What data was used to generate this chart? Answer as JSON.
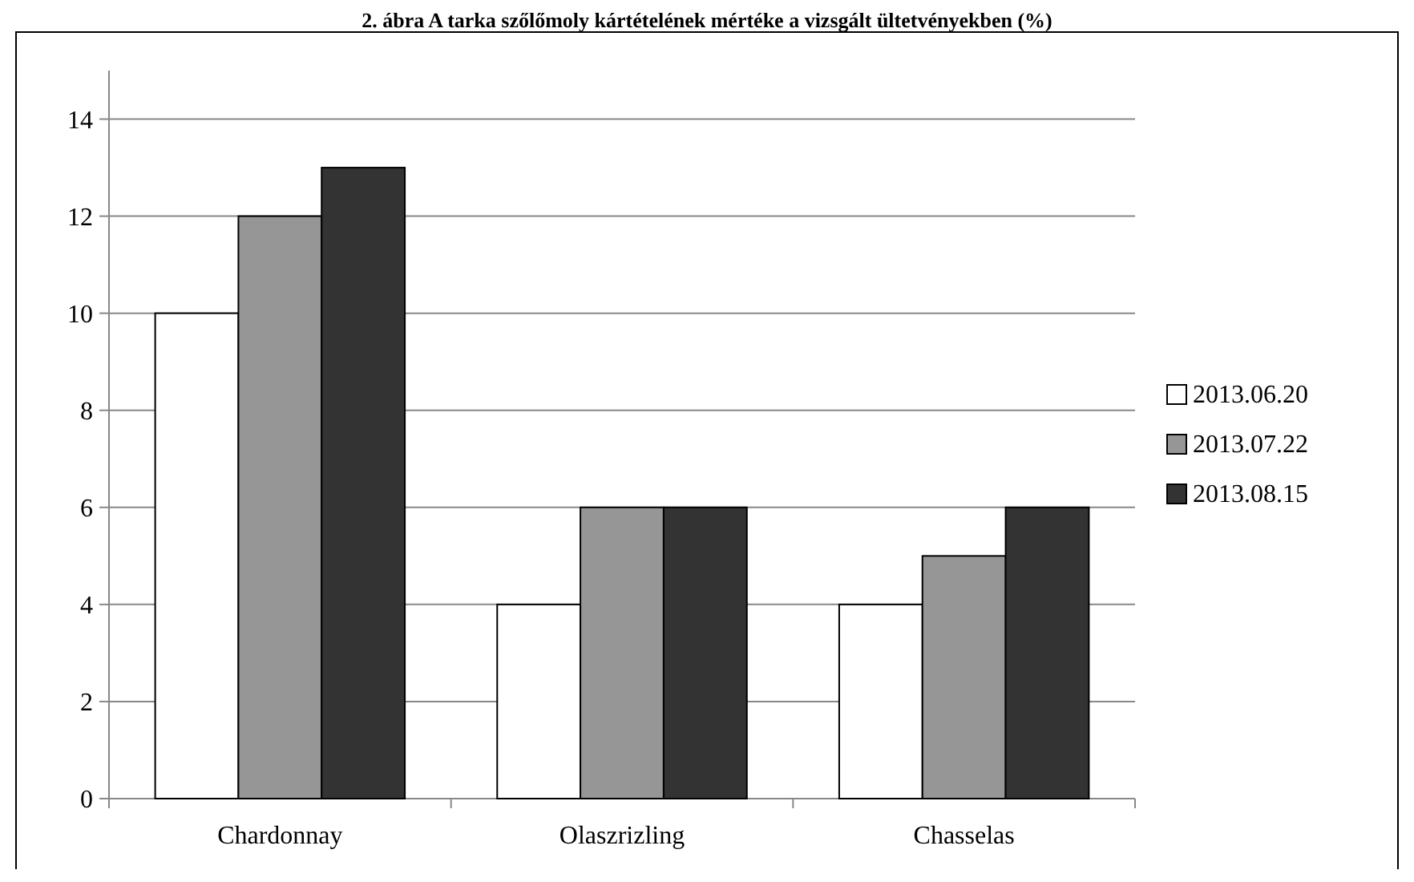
{
  "chart_data": {
    "type": "bar",
    "title": "2. ábra A tarka szőlőmoly kártételének mértéke a vizsgált ültetvényekben (%)",
    "categories": [
      "Chardonnay",
      "Olaszrizling",
      "Chasselas"
    ],
    "series": [
      {
        "name": "2013.06.20",
        "color": "#ffffff",
        "values": [
          10,
          4,
          4
        ]
      },
      {
        "name": "2013.07.22",
        "color": "#969696",
        "values": [
          12,
          6,
          5
        ]
      },
      {
        "name": "2013.08.15",
        "color": "#333333",
        "values": [
          13,
          6,
          6
        ]
      }
    ],
    "ylim": [
      0,
      15
    ],
    "yticks": [
      0,
      2,
      4,
      6,
      8,
      10,
      12,
      14
    ],
    "grid": "y",
    "legend": "right"
  }
}
